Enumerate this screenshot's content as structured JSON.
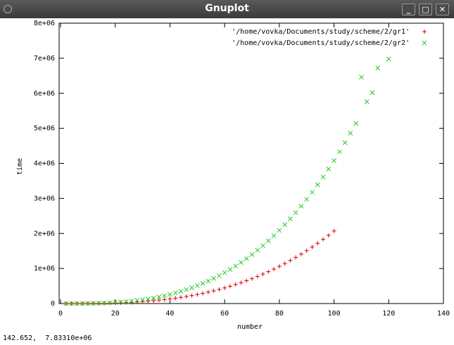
{
  "window": {
    "title": "Gnuplot",
    "status": "142.652,  7.83310e+06"
  },
  "chart_data": {
    "type": "scatter",
    "xlabel": "number",
    "ylabel": "time",
    "xlim": [
      0,
      140
    ],
    "xticks": [
      0,
      20,
      40,
      60,
      80,
      100,
      120,
      140
    ],
    "ylim": [
      0,
      8000000
    ],
    "yticks": [
      {
        "value": 0,
        "label": "0"
      },
      {
        "value": 1000000,
        "label": "1e+06"
      },
      {
        "value": 2000000,
        "label": "2e+06"
      },
      {
        "value": 3000000,
        "label": "3e+06"
      },
      {
        "value": 4000000,
        "label": "4e+06"
      },
      {
        "value": 5000000,
        "label": "5e+06"
      },
      {
        "value": 6000000,
        "label": "6e+06"
      },
      {
        "value": 7000000,
        "label": "7e+06"
      },
      {
        "value": 8000000,
        "label": "8e+06"
      }
    ],
    "legend": "top-right",
    "grid": false,
    "series": [
      {
        "name": "'/home/vovka/Documents/study/scheme/2/gr1'",
        "color": "#dd0000",
        "marker": "plus",
        "x": [
          2,
          4,
          6,
          8,
          10,
          12,
          14,
          16,
          18,
          20,
          22,
          24,
          26,
          28,
          30,
          32,
          34,
          36,
          38,
          40,
          42,
          44,
          46,
          48,
          50,
          52,
          54,
          56,
          58,
          60,
          62,
          64,
          66,
          68,
          70,
          72,
          74,
          76,
          78,
          80,
          82,
          84,
          86,
          88,
          90,
          92,
          94,
          96,
          98,
          100
        ],
        "values": [
          0,
          0,
          0,
          1000,
          2000,
          4000,
          6000,
          8000,
          12000,
          17000,
          22000,
          29000,
          36000,
          45000,
          56000,
          68000,
          81000,
          97000,
          114000,
          132000,
          153000,
          176000,
          201000,
          229000,
          259000,
          291000,
          326000,
          364000,
          404000,
          447000,
          493000,
          543000,
          595000,
          651000,
          710000,
          773000,
          839000,
          909000,
          982000,
          1060000,
          1141000,
          1227000,
          1317000,
          1411000,
          1509000,
          1612000,
          1719000,
          1831000,
          1948000,
          2070000
        ]
      },
      {
        "name": "'/home/vovka/Documents/study/scheme/2/gr2'",
        "color": "#22cc22",
        "marker": "cross",
        "x": [
          2,
          4,
          6,
          8,
          10,
          12,
          14,
          16,
          18,
          20,
          22,
          24,
          26,
          28,
          30,
          32,
          34,
          36,
          38,
          40,
          42,
          44,
          46,
          48,
          50,
          52,
          54,
          56,
          58,
          60,
          62,
          64,
          66,
          68,
          70,
          72,
          74,
          76,
          78,
          80,
          82,
          84,
          86,
          88,
          90,
          92,
          94,
          96,
          98,
          100,
          102,
          104,
          106,
          108,
          110,
          112,
          114,
          116,
          120
        ],
        "values": [
          0,
          0,
          1000,
          2000,
          4000,
          7000,
          11000,
          17000,
          24000,
          33000,
          43000,
          56000,
          72000,
          90000,
          110000,
          134000,
          160000,
          190000,
          224000,
          261000,
          302000,
          348000,
          397000,
          451000,
          510000,
          574000,
          642000,
          717000,
          796000,
          881000,
          972000,
          1070000,
          1173000,
          1283000,
          1399000,
          1523000,
          1653000,
          1791000,
          1936000,
          2089000,
          2250000,
          2418000,
          2595000,
          2780000,
          2974000,
          3177000,
          3389000,
          3610000,
          3840000,
          4080000,
          4330000,
          4589000,
          4859000,
          5140000,
          6460000,
          5760000,
          6020000,
          6720000,
          6980000
        ]
      }
    ]
  }
}
